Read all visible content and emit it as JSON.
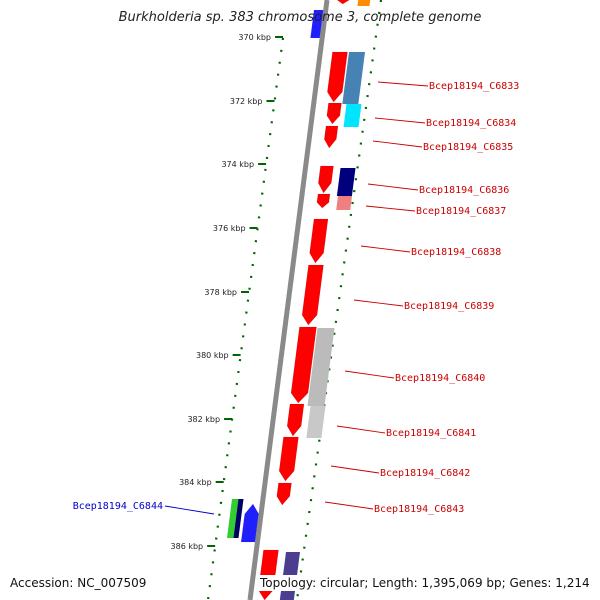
{
  "title": "Burkholderia sp. 383 chromosome 3, complete genome",
  "accession": "Accession: NC_007509",
  "summary": "Topology: circular; Length: 1,395,069 bp; Genes: 1,214",
  "colors": {
    "backbone": "#808080",
    "forward_gene": "#ff0000",
    "reverse_gene": "#2020ff",
    "tick": "#006400",
    "forward_label": "#cc0000",
    "reverse_label": "#0000cc"
  },
  "ticks": [
    {
      "label": "370 kbp"
    },
    {
      "label": "372 kbp"
    },
    {
      "label": "374 kbp"
    },
    {
      "label": "376 kbp"
    },
    {
      "label": "378 kbp"
    },
    {
      "label": "380 kbp"
    },
    {
      "label": "382 kbp"
    },
    {
      "label": "384 kbp"
    },
    {
      "label": "386 kbp"
    }
  ],
  "gene_labels": [
    {
      "text": "Bcep18194_C6833",
      "strand": "forward"
    },
    {
      "text": "Bcep18194_C6834",
      "strand": "forward"
    },
    {
      "text": "Bcep18194_C6835",
      "strand": "forward"
    },
    {
      "text": "Bcep18194_C6836",
      "strand": "forward"
    },
    {
      "text": "Bcep18194_C6837",
      "strand": "forward"
    },
    {
      "text": "Bcep18194_C6838",
      "strand": "forward"
    },
    {
      "text": "Bcep18194_C6839",
      "strand": "forward"
    },
    {
      "text": "Bcep18194_C6840",
      "strand": "forward"
    },
    {
      "text": "Bcep18194_C6841",
      "strand": "forward"
    },
    {
      "text": "Bcep18194_C6842",
      "strand": "forward"
    },
    {
      "text": "Bcep18194_C6843",
      "strand": "forward"
    },
    {
      "text": "Bcep18194_C6844",
      "strand": "reverse"
    }
  ]
}
